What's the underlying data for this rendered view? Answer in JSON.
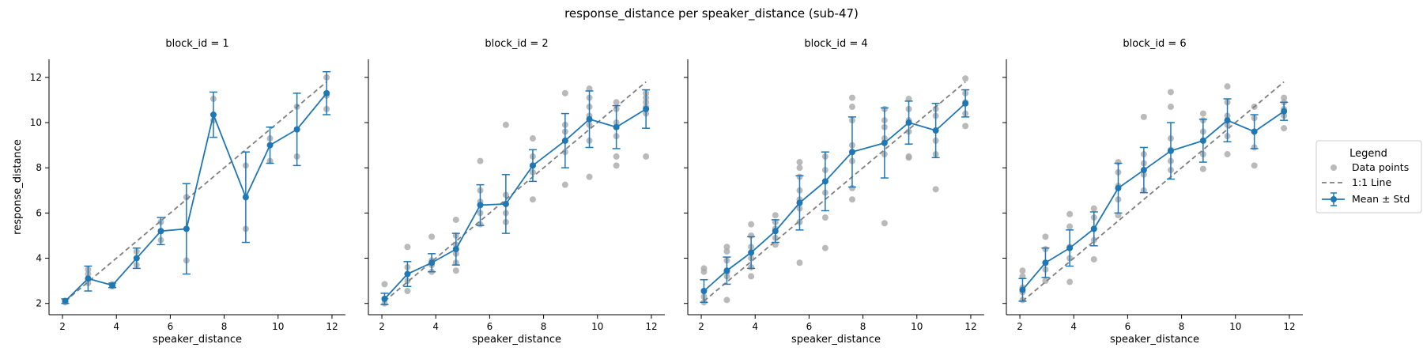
{
  "figure": {
    "title": "response_distance per speaker_distance (sub-47)"
  },
  "legend": {
    "title": "Legend",
    "placement": "right",
    "entries": [
      {
        "label": "Data points",
        "kind": "points"
      },
      {
        "label": "1:1 Line",
        "kind": "dashed-line"
      },
      {
        "label": "Mean ± Std",
        "kind": "errorbar-line"
      }
    ]
  },
  "colors": {
    "points": "#a9a9a9",
    "mean": "#1f77b4",
    "identity": "#7f7f7f",
    "axis": "#000000"
  },
  "chart_data": {
    "type": "scatter",
    "xlabel": "speaker_distance",
    "ylabel": "response_distance",
    "xlim": [
      1.5,
      12.5
    ],
    "ylim": [
      1.5,
      12.8
    ],
    "xticks": [
      2,
      4,
      6,
      8,
      10,
      12
    ],
    "yticks": [
      2,
      4,
      6,
      8,
      10,
      12
    ],
    "grid": false,
    "identity_line": [
      [
        2.1,
        2.1
      ],
      [
        11.8,
        11.8
      ]
    ],
    "speaker_distances": [
      2.1,
      2.95,
      3.85,
      4.75,
      5.65,
      6.6,
      7.6,
      8.8,
      9.7,
      10.7,
      11.8
    ],
    "panels": [
      {
        "title": "block_id = 1",
        "mean": [
          2.1,
          3.1,
          2.8,
          4.0,
          5.2,
          5.3,
          10.35,
          6.7,
          9.0,
          9.7,
          11.3
        ],
        "std": [
          0.1,
          0.55,
          0.1,
          0.45,
          0.6,
          2.0,
          1.0,
          2.0,
          0.8,
          1.6,
          0.95
        ],
        "points": [
          [
            2.1,
            2.05
          ],
          [
            2.1,
            2.12
          ],
          [
            2.95,
            2.9
          ],
          [
            2.95,
            3.3
          ],
          [
            2.95,
            3.5
          ],
          [
            3.85,
            2.75
          ],
          [
            3.85,
            2.85
          ],
          [
            4.75,
            3.7
          ],
          [
            4.75,
            4.0
          ],
          [
            4.75,
            4.3
          ],
          [
            5.65,
            4.8
          ],
          [
            5.65,
            5.2
          ],
          [
            5.65,
            5.6
          ],
          [
            6.6,
            3.9
          ],
          [
            6.6,
            6.7
          ],
          [
            7.6,
            10.1
          ],
          [
            7.6,
            11.05
          ],
          [
            8.8,
            5.3
          ],
          [
            8.8,
            8.1
          ],
          [
            9.7,
            8.3
          ],
          [
            9.7,
            9.3
          ],
          [
            10.7,
            8.5
          ],
          [
            10.7,
            10.7
          ],
          [
            11.8,
            10.6
          ],
          [
            11.8,
            11.2
          ],
          [
            11.8,
            12.0
          ]
        ]
      },
      {
        "title": "block_id = 2",
        "mean": [
          2.2,
          3.3,
          3.8,
          4.4,
          6.35,
          6.4,
          8.1,
          9.2,
          10.15,
          9.8,
          10.6
        ],
        "std": [
          0.25,
          0.55,
          0.4,
          0.7,
          0.9,
          1.3,
          0.7,
          1.2,
          1.25,
          0.95,
          0.85
        ],
        "points": [
          [
            2.1,
            2.0
          ],
          [
            2.1,
            2.2
          ],
          [
            2.1,
            2.85
          ],
          [
            2.95,
            2.55
          ],
          [
            2.95,
            3.0
          ],
          [
            2.95,
            3.3
          ],
          [
            2.95,
            3.6
          ],
          [
            2.95,
            4.5
          ],
          [
            3.85,
            3.4
          ],
          [
            3.85,
            3.7
          ],
          [
            3.85,
            3.9
          ],
          [
            3.85,
            4.95
          ],
          [
            4.75,
            3.45
          ],
          [
            4.75,
            3.8
          ],
          [
            4.75,
            4.2
          ],
          [
            4.75,
            4.6
          ],
          [
            4.75,
            5.0
          ],
          [
            4.75,
            5.7
          ],
          [
            5.65,
            5.5
          ],
          [
            5.65,
            6.0
          ],
          [
            5.65,
            6.5
          ],
          [
            5.65,
            7.0
          ],
          [
            5.65,
            8.3
          ],
          [
            6.6,
            5.6
          ],
          [
            6.6,
            6.0
          ],
          [
            6.6,
            6.4
          ],
          [
            6.6,
            6.8
          ],
          [
            6.6,
            9.9
          ],
          [
            7.6,
            6.6
          ],
          [
            7.6,
            7.8
          ],
          [
            7.6,
            8.1
          ],
          [
            7.6,
            8.5
          ],
          [
            7.6,
            9.3
          ],
          [
            8.8,
            7.25
          ],
          [
            8.8,
            8.7
          ],
          [
            8.8,
            9.2
          ],
          [
            8.8,
            9.6
          ],
          [
            8.8,
            9.9
          ],
          [
            8.8,
            11.3
          ],
          [
            9.7,
            7.6
          ],
          [
            9.7,
            9.2
          ],
          [
            9.7,
            9.9
          ],
          [
            9.7,
            10.3
          ],
          [
            9.7,
            10.7
          ],
          [
            9.7,
            11.1
          ],
          [
            9.7,
            11.5
          ],
          [
            10.7,
            8.1
          ],
          [
            10.7,
            8.5
          ],
          [
            10.7,
            9.4
          ],
          [
            10.7,
            10.0
          ],
          [
            10.7,
            10.6
          ],
          [
            10.7,
            10.9
          ],
          [
            11.8,
            8.5
          ],
          [
            11.8,
            10.4
          ],
          [
            11.8,
            10.7
          ],
          [
            11.8,
            10.9
          ],
          [
            11.8,
            11.1
          ],
          [
            11.8,
            11.3
          ]
        ]
      },
      {
        "title": "block_id = 4",
        "mean": [
          2.55,
          3.45,
          4.25,
          5.2,
          6.45,
          7.4,
          8.7,
          9.1,
          10.0,
          9.65,
          10.85
        ],
        "std": [
          0.5,
          0.6,
          0.7,
          0.5,
          1.2,
          1.3,
          1.55,
          1.55,
          0.95,
          1.2,
          0.6
        ],
        "points": [
          [
            2.1,
            2.05
          ],
          [
            2.1,
            2.3
          ],
          [
            2.1,
            3.4
          ],
          [
            2.1,
            3.55
          ],
          [
            2.95,
            2.15
          ],
          [
            2.95,
            3.2
          ],
          [
            2.95,
            3.4
          ],
          [
            2.95,
            3.9
          ],
          [
            2.95,
            4.3
          ],
          [
            2.95,
            4.5
          ],
          [
            3.85,
            3.2
          ],
          [
            3.85,
            3.6
          ],
          [
            3.85,
            4.0
          ],
          [
            3.85,
            4.5
          ],
          [
            3.85,
            5.0
          ],
          [
            3.85,
            5.5
          ],
          [
            4.75,
            4.6
          ],
          [
            4.75,
            4.9
          ],
          [
            4.75,
            5.3
          ],
          [
            4.75,
            5.6
          ],
          [
            4.75,
            5.9
          ],
          [
            5.65,
            3.8
          ],
          [
            5.65,
            5.6
          ],
          [
            5.65,
            6.2
          ],
          [
            5.65,
            6.6
          ],
          [
            5.65,
            7.0
          ],
          [
            5.65,
            7.6
          ],
          [
            5.65,
            8.0
          ],
          [
            5.65,
            8.25
          ],
          [
            6.6,
            4.45
          ],
          [
            6.6,
            5.8
          ],
          [
            6.6,
            6.9
          ],
          [
            6.6,
            7.4
          ],
          [
            6.6,
            7.9
          ],
          [
            6.6,
            8.5
          ],
          [
            7.6,
            6.6
          ],
          [
            7.6,
            7.1
          ],
          [
            7.6,
            8.3
          ],
          [
            7.6,
            9.0
          ],
          [
            7.6,
            10.1
          ],
          [
            7.6,
            10.7
          ],
          [
            7.6,
            11.1
          ],
          [
            8.8,
            5.55
          ],
          [
            8.8,
            8.6
          ],
          [
            8.8,
            9.3
          ],
          [
            8.8,
            9.8
          ],
          [
            8.8,
            10.1
          ],
          [
            8.8,
            10.6
          ],
          [
            9.7,
            8.45
          ],
          [
            9.7,
            8.5
          ],
          [
            9.7,
            9.6
          ],
          [
            9.7,
            10.1
          ],
          [
            9.7,
            10.6
          ],
          [
            9.7,
            11.05
          ],
          [
            10.7,
            7.05
          ],
          [
            10.7,
            8.6
          ],
          [
            10.7,
            9.2
          ],
          [
            10.7,
            10.3
          ],
          [
            10.7,
            10.6
          ],
          [
            11.8,
            9.85
          ],
          [
            11.8,
            10.4
          ],
          [
            11.8,
            10.9
          ],
          [
            11.8,
            11.3
          ],
          [
            11.8,
            11.95
          ]
        ]
      },
      {
        "title": "block_id = 6",
        "mean": [
          2.6,
          3.8,
          4.45,
          5.3,
          7.1,
          7.9,
          8.75,
          9.2,
          10.1,
          9.6,
          10.5
        ],
        "std": [
          0.5,
          0.65,
          0.8,
          0.75,
          1.1,
          1.0,
          1.25,
          0.95,
          0.95,
          0.75,
          0.4
        ],
        "points": [
          [
            2.1,
            2.15
          ],
          [
            2.1,
            2.5
          ],
          [
            2.1,
            2.7
          ],
          [
            2.1,
            3.2
          ],
          [
            2.1,
            3.45
          ],
          [
            2.95,
            3.0
          ],
          [
            2.95,
            3.5
          ],
          [
            2.95,
            3.8
          ],
          [
            2.95,
            4.4
          ],
          [
            2.95,
            4.95
          ],
          [
            3.85,
            2.95
          ],
          [
            3.85,
            4.0
          ],
          [
            3.85,
            4.5
          ],
          [
            3.85,
            5.4
          ],
          [
            3.85,
            5.95
          ],
          [
            4.75,
            3.95
          ],
          [
            4.75,
            4.8
          ],
          [
            4.75,
            5.3
          ],
          [
            4.75,
            5.8
          ],
          [
            4.75,
            6.2
          ],
          [
            5.65,
            5.9
          ],
          [
            5.65,
            6.6
          ],
          [
            5.65,
            7.2
          ],
          [
            5.65,
            7.8
          ],
          [
            5.65,
            8.25
          ],
          [
            6.6,
            7.0
          ],
          [
            6.6,
            7.7
          ],
          [
            6.6,
            8.2
          ],
          [
            6.6,
            8.6
          ],
          [
            6.6,
            10.25
          ],
          [
            7.6,
            7.9
          ],
          [
            7.6,
            8.3
          ],
          [
            7.6,
            8.8
          ],
          [
            7.6,
            9.3
          ],
          [
            7.6,
            10.7
          ],
          [
            7.6,
            11.35
          ],
          [
            8.8,
            7.95
          ],
          [
            8.8,
            8.6
          ],
          [
            8.8,
            9.2
          ],
          [
            8.8,
            9.6
          ],
          [
            8.8,
            10.1
          ],
          [
            8.8,
            10.4
          ],
          [
            9.7,
            8.6
          ],
          [
            9.7,
            9.4
          ],
          [
            9.7,
            9.9
          ],
          [
            9.7,
            10.3
          ],
          [
            9.7,
            10.9
          ],
          [
            9.7,
            11.6
          ],
          [
            10.7,
            8.1
          ],
          [
            10.7,
            8.9
          ],
          [
            10.7,
            9.6
          ],
          [
            10.7,
            10.2
          ],
          [
            10.7,
            10.7
          ],
          [
            11.8,
            9.75
          ],
          [
            11.8,
            10.3
          ],
          [
            11.8,
            10.6
          ],
          [
            11.8,
            10.9
          ],
          [
            11.8,
            11.1
          ]
        ]
      }
    ]
  }
}
